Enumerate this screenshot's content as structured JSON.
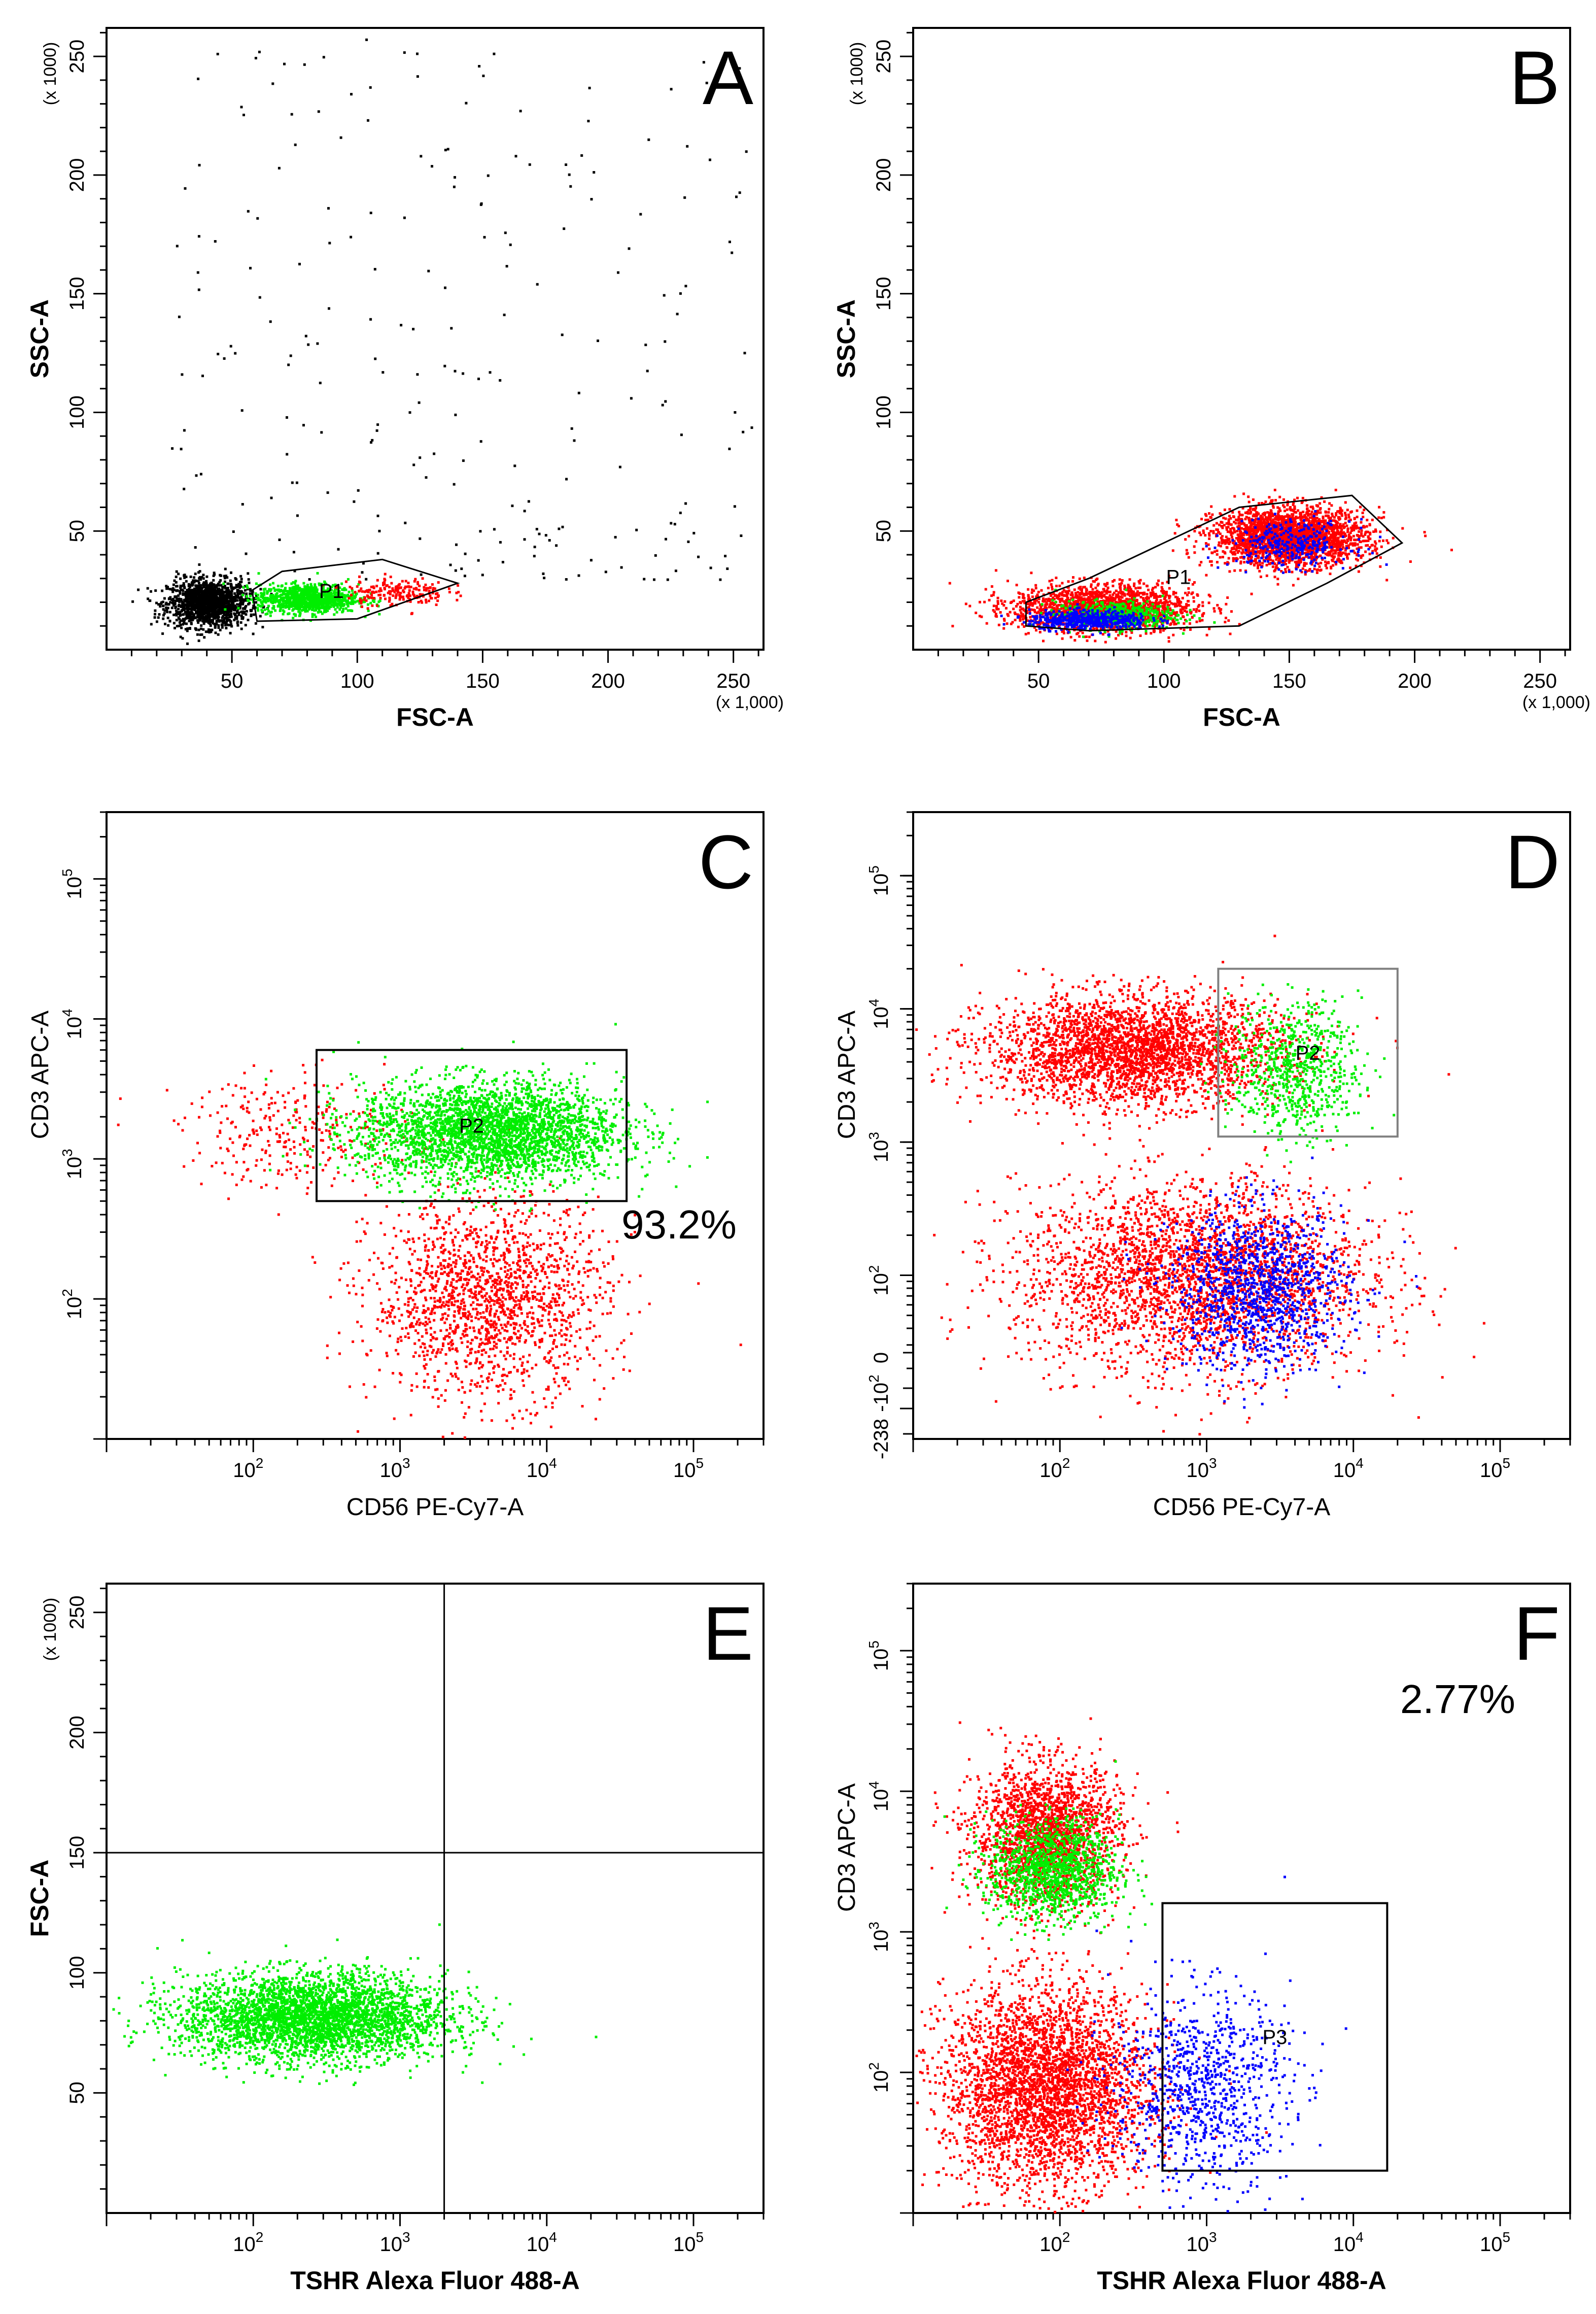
{
  "colors": {
    "black": "#000000",
    "red": "#ff0000",
    "green": "#00ee00",
    "blue": "#0000ff",
    "gate_gray": "#808080"
  },
  "chart_data": [
    {
      "id": "A",
      "type": "scatter",
      "panel_letter": "A",
      "xlabel": "FSC-A",
      "ylabel": "SSC-A",
      "x_scale": "linear",
      "y_scale": "linear",
      "xlim": [
        0,
        262
      ],
      "ylim": [
        0,
        262
      ],
      "x_ticks": [
        "50",
        "100",
        "150",
        "200",
        "250"
      ],
      "y_ticks": [
        "50",
        "100",
        "150",
        "200",
        "250"
      ],
      "x_multiplier": "(x 1,000)",
      "y_multiplier": "(x 1000)",
      "gate": {
        "name": "P1",
        "shape": "polygon",
        "vertices": [
          [
            60,
            12
          ],
          [
            58,
            25
          ],
          [
            70,
            33
          ],
          [
            110,
            38
          ],
          [
            140,
            28
          ],
          [
            100,
            13
          ]
        ]
      },
      "populations": [
        {
          "color": "black",
          "count": 1500,
          "center": [
            40,
            20
          ],
          "spread": [
            8,
            5
          ]
        },
        {
          "color": "green",
          "count": 1000,
          "center": [
            80,
            22
          ],
          "spread": [
            10,
            3
          ]
        },
        {
          "color": "red",
          "count": 200,
          "center": [
            115,
            25
          ],
          "spread": [
            10,
            3
          ]
        },
        {
          "color": "black",
          "count": 250,
          "distribution": "scatter",
          "range": [
            [
              25,
              260
            ],
            [
              30,
              262
            ]
          ]
        }
      ]
    },
    {
      "id": "B",
      "type": "scatter",
      "panel_letter": "B",
      "xlabel": "FSC-A",
      "ylabel": "SSC-A",
      "x_scale": "linear",
      "y_scale": "linear",
      "xlim": [
        0,
        262
      ],
      "ylim": [
        0,
        262
      ],
      "x_ticks": [
        "50",
        "100",
        "150",
        "200",
        "250"
      ],
      "y_ticks": [
        "50",
        "100",
        "150",
        "200",
        "250"
      ],
      "x_multiplier": "(x 1,000)",
      "y_multiplier": "(x 1000)",
      "gate": {
        "name": "P1",
        "shape": "polygon",
        "vertices": [
          [
            45,
            10
          ],
          [
            45,
            20
          ],
          [
            70,
            30
          ],
          [
            130,
            60
          ],
          [
            175,
            65
          ],
          [
            195,
            45
          ],
          [
            165,
            28
          ],
          [
            130,
            10
          ],
          [
            70,
            8
          ]
        ]
      },
      "populations": [
        {
          "color": "red",
          "count": 2500,
          "center": [
            150,
            48
          ],
          "spread": [
            15,
            6
          ]
        },
        {
          "color": "red",
          "count": 1800,
          "center": [
            75,
            18
          ],
          "spread": [
            18,
            5
          ]
        },
        {
          "color": "green",
          "count": 500,
          "center": [
            80,
            15
          ],
          "spread": [
            12,
            3
          ]
        },
        {
          "color": "blue",
          "count": 500,
          "center": [
            70,
            13
          ],
          "spread": [
            12,
            2
          ]
        },
        {
          "color": "blue",
          "count": 300,
          "center": [
            150,
            45
          ],
          "spread": [
            12,
            5
          ]
        }
      ]
    },
    {
      "id": "C",
      "type": "scatter",
      "panel_letter": "C",
      "xlabel": "CD56 PE-Cy7-A",
      "ylabel": "CD3 APC-A",
      "x_scale": "log",
      "y_scale": "log",
      "xlim": [
        10,
        300000
      ],
      "ylim": [
        10,
        300000
      ],
      "x_ticks": [
        {
          "value": 100,
          "label": "10",
          "exp": "2"
        },
        {
          "value": 1000,
          "label": "10",
          "exp": "3"
        },
        {
          "value": 10000,
          "label": "10",
          "exp": "4"
        },
        {
          "value": 100000,
          "label": "10",
          "exp": "5"
        }
      ],
      "y_ticks": [
        {
          "value": 100,
          "label": "10",
          "exp": "2"
        },
        {
          "value": 1000,
          "label": "10",
          "exp": "3"
        },
        {
          "value": 10000,
          "label": "10",
          "exp": "4"
        },
        {
          "value": 100000,
          "label": "10",
          "exp": "5"
        }
      ],
      "gate": {
        "name": "P2",
        "shape": "rect",
        "x_range": [
          270,
          35000
        ],
        "y_range": [
          500,
          6000
        ]
      },
      "annotation": "93.2%",
      "populations": [
        {
          "color": "red",
          "count": 1700,
          "center_log": [
            3.6,
            2.0
          ],
          "spread_log": [
            0.4,
            0.35
          ]
        },
        {
          "color": "red",
          "count": 300,
          "center_log": [
            2.3,
            3.2
          ],
          "spread_log": [
            0.4,
            0.2
          ]
        },
        {
          "color": "green",
          "count": 3000,
          "center_log": [
            3.6,
            3.2
          ],
          "spread_log": [
            0.45,
            0.18
          ]
        }
      ]
    },
    {
      "id": "D",
      "type": "scatter",
      "panel_letter": "D",
      "xlabel": "CD56 PE-Cy7-A",
      "ylabel": "CD3 APC-A",
      "x_scale": "log",
      "y_scale": "biexponential",
      "xlim": [
        10,
        300000
      ],
      "ylim": [
        -238,
        300000
      ],
      "x_ticks": [
        {
          "value": 100,
          "label": "10",
          "exp": "2"
        },
        {
          "value": 1000,
          "label": "10",
          "exp": "3"
        },
        {
          "value": 10000,
          "label": "10",
          "exp": "4"
        },
        {
          "value": 100000,
          "label": "10",
          "exp": "5"
        }
      ],
      "y_ticks": [
        {
          "label": "-238"
        },
        {
          "label": "-10",
          "exp": "2"
        },
        {
          "label": "0"
        },
        {
          "label": "10",
          "exp": "2"
        },
        {
          "label": "10",
          "exp": "3"
        },
        {
          "label": "10",
          "exp": "4"
        },
        {
          "label": "10",
          "exp": "5"
        }
      ],
      "gate": {
        "name": "P2",
        "shape": "rect",
        "x_range": [
          1200,
          20000
        ],
        "y_range": [
          1100,
          20000
        ]
      },
      "populations": [
        {
          "color": "red",
          "count": 3000,
          "center_log": [
            2.5,
            3.7
          ],
          "spread_log": [
            0.5,
            0.2
          ]
        },
        {
          "color": "green",
          "count": 700,
          "center_log": [
            3.6,
            3.55
          ],
          "spread_log": [
            0.22,
            0.25
          ]
        },
        {
          "color": "red",
          "count": 3000,
          "center_log": [
            2.9,
            2.0
          ],
          "spread_log": [
            0.6,
            0.35
          ]
        },
        {
          "color": "blue",
          "count": 1200,
          "center_log": [
            3.35,
            1.9
          ],
          "spread_log": [
            0.3,
            0.3
          ]
        }
      ]
    },
    {
      "id": "E",
      "type": "scatter",
      "panel_letter": "E",
      "xlabel": "TSHR Alexa Fluor 488-A",
      "ylabel": "FSC-A",
      "x_scale": "log",
      "y_scale": "linear",
      "xlim": [
        10,
        300000
      ],
      "ylim": [
        0,
        262
      ],
      "x_ticks": [
        {
          "value": 100,
          "label": "10",
          "exp": "2"
        },
        {
          "value": 1000,
          "label": "10",
          "exp": "3"
        },
        {
          "value": 10000,
          "label": "10",
          "exp": "4"
        },
        {
          "value": 100000,
          "label": "10",
          "exp": "5"
        }
      ],
      "y_ticks": [
        "50",
        "100",
        "150",
        "200",
        "250"
      ],
      "y_multiplier": "(x 1000)",
      "quadrant": {
        "x": 2000,
        "y": 150
      },
      "populations": [
        {
          "color": "green",
          "count": 3500,
          "center_log": [
            2.4,
            82
          ],
          "spread_log": [
            0.45,
            9
          ]
        }
      ]
    },
    {
      "id": "F",
      "type": "scatter",
      "panel_letter": "F",
      "xlabel": "TSHR Alexa Fluor 488-A",
      "ylabel": "CD3 APC-A",
      "x_scale": "log",
      "y_scale": "log",
      "xlim": [
        10,
        300000
      ],
      "ylim": [
        10,
        300000
      ],
      "x_ticks": [
        {
          "value": 100,
          "label": "10",
          "exp": "2"
        },
        {
          "value": 1000,
          "label": "10",
          "exp": "3"
        },
        {
          "value": 10000,
          "label": "10",
          "exp": "4"
        },
        {
          "value": 100000,
          "label": "10",
          "exp": "5"
        }
      ],
      "y_ticks": [
        {
          "value": 100,
          "label": "10",
          "exp": "2"
        },
        {
          "value": 1000,
          "label": "10",
          "exp": "3"
        },
        {
          "value": 10000,
          "label": "10",
          "exp": "4"
        },
        {
          "value": 100000,
          "label": "10",
          "exp": "5"
        }
      ],
      "gate": {
        "name": "P3",
        "shape": "rect",
        "x_range": [
          500,
          17000
        ],
        "y_range": [
          20,
          1600
        ]
      },
      "annotation": "2.77%",
      "populations": [
        {
          "color": "red",
          "count": 2000,
          "center_log": [
            1.9,
            3.7
          ],
          "spread_log": [
            0.25,
            0.25
          ]
        },
        {
          "color": "green",
          "count": 1200,
          "center_log": [
            1.95,
            3.45
          ],
          "spread_log": [
            0.22,
            0.18
          ]
        },
        {
          "color": "red",
          "count": 3500,
          "center_log": [
            1.9,
            1.9
          ],
          "spread_log": [
            0.35,
            0.35
          ]
        },
        {
          "color": "blue",
          "count": 900,
          "center_log": [
            2.95,
            1.9
          ],
          "spread_log": [
            0.3,
            0.35
          ]
        }
      ]
    }
  ]
}
